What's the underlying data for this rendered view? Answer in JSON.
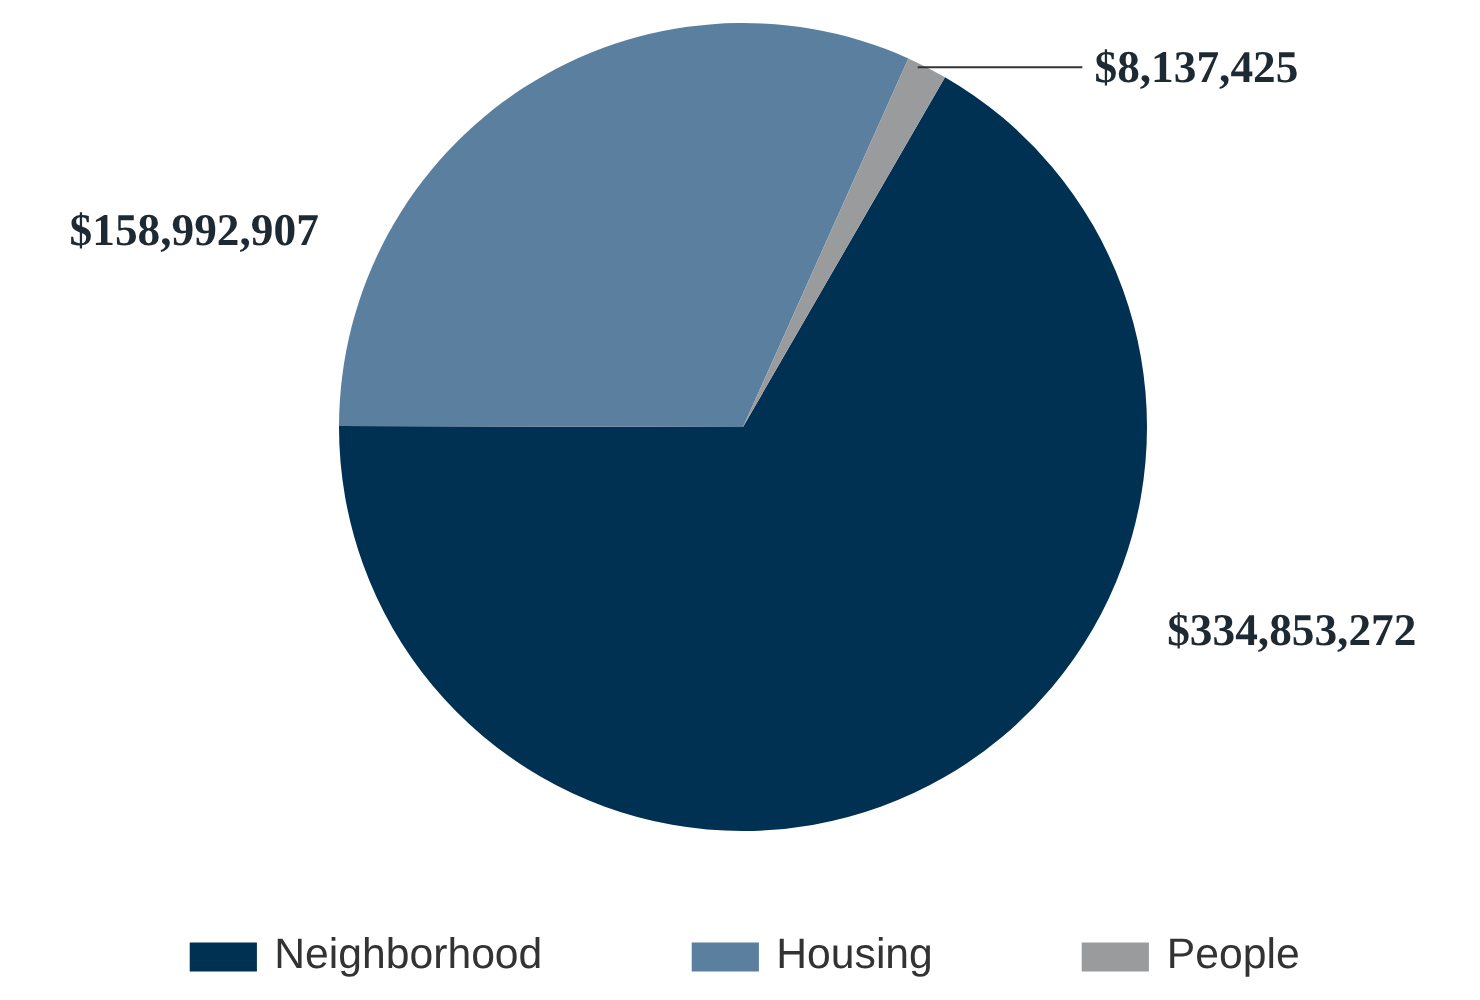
{
  "chart_data": {
    "type": "pie",
    "categories": [
      "Neighborhood",
      "Housing",
      "People"
    ],
    "values": [
      334853272,
      158992907,
      8137425
    ],
    "colors": [
      "#003152",
      "#5b7f9f",
      "#9a9b9d"
    ],
    "value_labels": [
      "$334,853,272",
      "$158,992,907",
      "$8,137,425"
    ],
    "legend": "bottom"
  }
}
